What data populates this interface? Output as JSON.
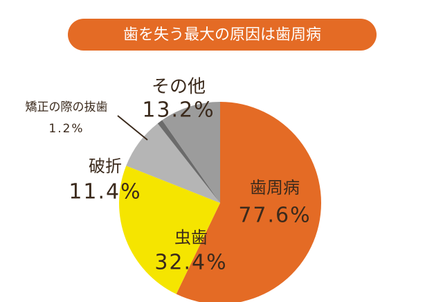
{
  "chart_data": {
    "type": "pie",
    "title": "歯を失う最大の原因は歯周病",
    "categories": [
      "歯周病",
      "虫歯",
      "破折",
      "矯正の際の抜歯",
      "その他"
    ],
    "values": [
      77.6,
      32.4,
      11.4,
      1.2,
      13.2
    ],
    "value_labels": [
      "77.6%",
      "32.4%",
      "11.4%",
      "1.2%",
      "13.2%"
    ],
    "colors": [
      "#e46b25",
      "#f5e500",
      "#b5b5b5",
      "#6b6b6b",
      "#9c9c9c"
    ]
  }
}
